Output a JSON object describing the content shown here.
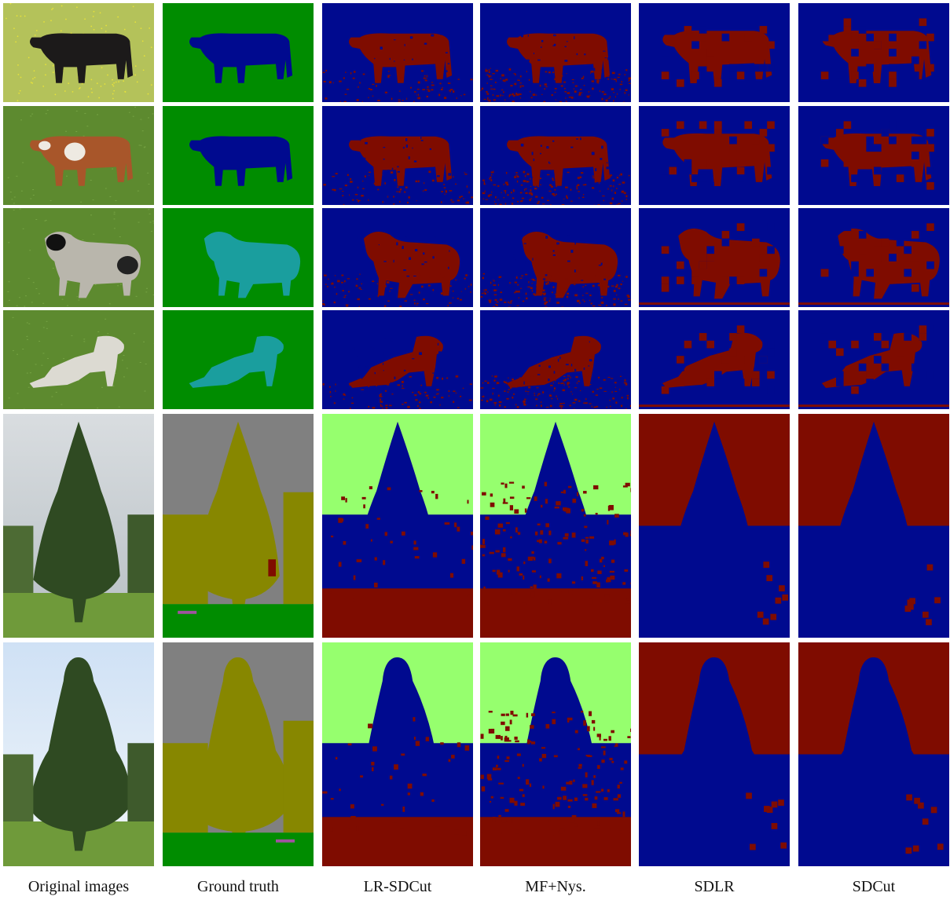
{
  "columns": [
    "Original images",
    "Ground truth",
    "LR-SDCut",
    "MF+Nys.",
    "SDLR",
    "SDCut"
  ],
  "colors": {
    "seg_blue": "#000a8f",
    "seg_red": "#7f0c00",
    "seg_green": "#008c00",
    "seg_lime": "#96ff6e",
    "seg_gray": "#808080",
    "seg_olive": "#878700",
    "seg_teal": "#1a9e9e",
    "seg_magenta": "#a052a0"
  },
  "rows": [
    {
      "subject": "black-cow",
      "shape": "cow"
    },
    {
      "subject": "brown-white-cow",
      "shape": "cow"
    },
    {
      "subject": "black-faced-sheep",
      "shape": "sheep"
    },
    {
      "subject": "white-lamb",
      "shape": "lamb"
    },
    {
      "subject": "sequoia-tree",
      "shape": "tree"
    },
    {
      "subject": "bushy-tree",
      "shape": "tree2"
    }
  ]
}
